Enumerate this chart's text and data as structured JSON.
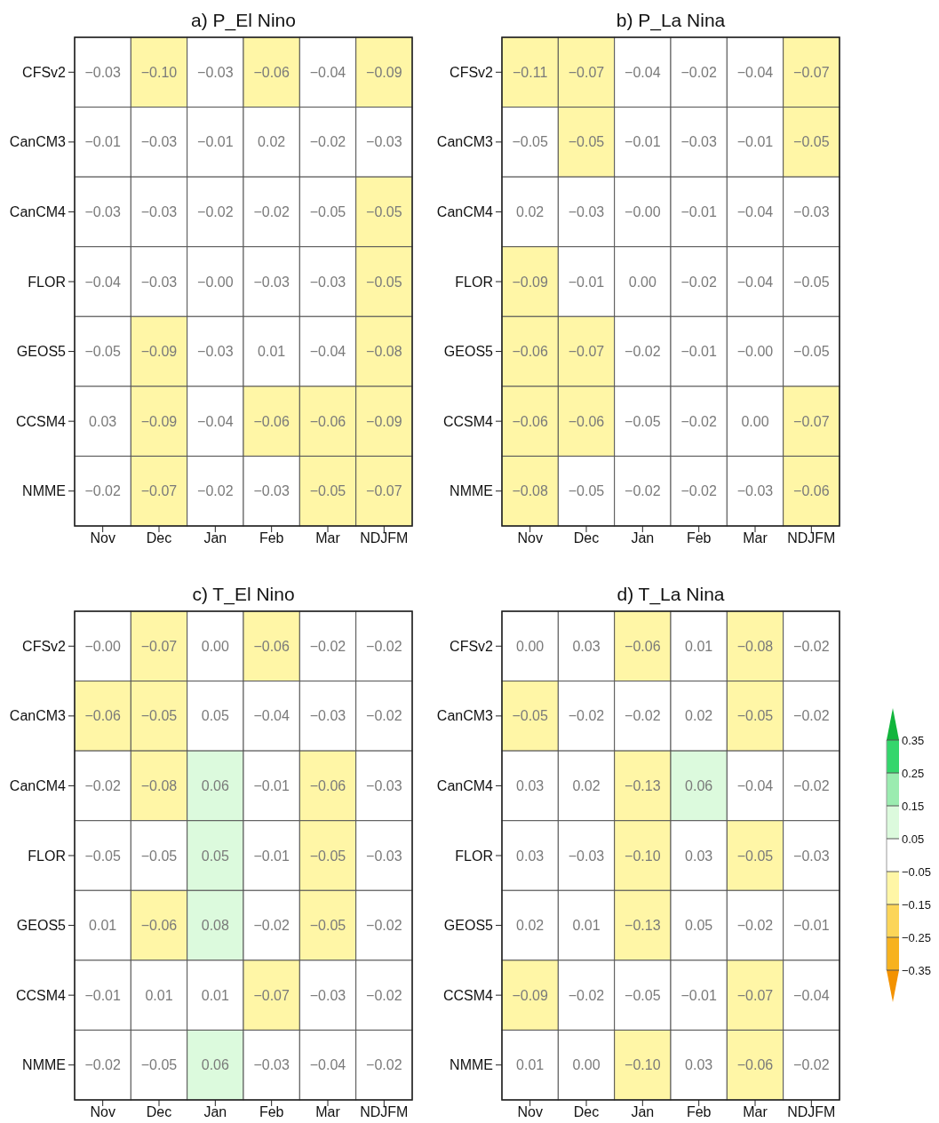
{
  "chart_data": [
    {
      "type": "heatmap",
      "title": "a) P_El Nino",
      "categories": [
        "Nov",
        "Dec",
        "Jan",
        "Feb",
        "Mar",
        "NDJFM"
      ],
      "y_categories": [
        "CFSv2",
        "CanCM3",
        "CanCM4",
        "FLOR",
        "GEOS5",
        "CCSM4",
        "NMME"
      ],
      "cells": [
        [
          -0.03,
          -0.1,
          -0.03,
          -0.06,
          -0.04,
          -0.09
        ],
        [
          -0.01,
          -0.03,
          -0.01,
          0.02,
          -0.02,
          -0.03
        ],
        [
          -0.03,
          -0.03,
          -0.02,
          -0.02,
          -0.048,
          -0.052
        ],
        [
          -0.04,
          -0.03,
          0,
          -0.03,
          -0.03,
          -0.052
        ],
        [
          -0.048,
          -0.09,
          -0.03,
          0.01,
          -0.04,
          -0.08
        ],
        [
          0.03,
          -0.09,
          -0.04,
          -0.06,
          -0.06,
          -0.09
        ],
        [
          -0.02,
          -0.07,
          -0.02,
          -0.03,
          -0.052,
          -0.07
        ]
      ],
      "cell_labels": [
        [
          "−0.03",
          "−0.10",
          "−0.03",
          "−0.06",
          "−0.04",
          "−0.09"
        ],
        [
          "−0.01",
          "−0.03",
          "−0.01",
          "0.02",
          "−0.02",
          "−0.03"
        ],
        [
          "−0.03",
          "−0.03",
          "−0.02",
          "−0.02",
          "−0.05",
          "−0.05"
        ],
        [
          "−0.04",
          "−0.03",
          "−0.00",
          "−0.03",
          "−0.03",
          "−0.05"
        ],
        [
          "−0.05",
          "−0.09",
          "−0.03",
          "0.01",
          "−0.04",
          "−0.08"
        ],
        [
          "0.03",
          "−0.09",
          "−0.04",
          "−0.06",
          "−0.06",
          "−0.09"
        ],
        [
          "−0.02",
          "−0.07",
          "−0.02",
          "−0.03",
          "−0.05",
          "−0.07"
        ]
      ]
    },
    {
      "type": "heatmap",
      "title": "b) P_La Nina",
      "categories": [
        "Nov",
        "Dec",
        "Jan",
        "Feb",
        "Mar",
        "NDJFM"
      ],
      "y_categories": [
        "CFSv2",
        "CanCM3",
        "CanCM4",
        "FLOR",
        "GEOS5",
        "CCSM4",
        "NMME"
      ],
      "cells": [
        [
          -0.11,
          -0.07,
          -0.04,
          -0.02,
          -0.04,
          -0.07
        ],
        [
          -0.048,
          -0.052,
          -0.01,
          -0.03,
          -0.01,
          -0.052
        ],
        [
          0.02,
          -0.03,
          0,
          -0.01,
          -0.04,
          -0.03
        ],
        [
          -0.09,
          -0.01,
          0,
          -0.02,
          -0.04,
          -0.048
        ],
        [
          -0.06,
          -0.07,
          -0.02,
          -0.01,
          0,
          -0.048
        ],
        [
          -0.06,
          -0.06,
          -0.048,
          -0.02,
          0,
          -0.07
        ],
        [
          -0.08,
          -0.048,
          -0.02,
          -0.02,
          -0.03,
          -0.06
        ]
      ],
      "cell_labels": [
        [
          "−0.11",
          "−0.07",
          "−0.04",
          "−0.02",
          "−0.04",
          "−0.07"
        ],
        [
          "−0.05",
          "−0.05",
          "−0.01",
          "−0.03",
          "−0.01",
          "−0.05"
        ],
        [
          "0.02",
          "−0.03",
          "−0.00",
          "−0.01",
          "−0.04",
          "−0.03"
        ],
        [
          "−0.09",
          "−0.01",
          "0.00",
          "−0.02",
          "−0.04",
          "−0.05"
        ],
        [
          "−0.06",
          "−0.07",
          "−0.02",
          "−0.01",
          "−0.00",
          "−0.05"
        ],
        [
          "−0.06",
          "−0.06",
          "−0.05",
          "−0.02",
          "0.00",
          "−0.07"
        ],
        [
          "−0.08",
          "−0.05",
          "−0.02",
          "−0.02",
          "−0.03",
          "−0.06"
        ]
      ]
    },
    {
      "type": "heatmap",
      "title": "c) T_El Nino",
      "categories": [
        "Nov",
        "Dec",
        "Jan",
        "Feb",
        "Mar",
        "NDJFM"
      ],
      "y_categories": [
        "CFSv2",
        "CanCM3",
        "CanCM4",
        "FLOR",
        "GEOS5",
        "CCSM4",
        "NMME"
      ],
      "cells": [
        [
          0,
          -0.07,
          0,
          -0.06,
          -0.02,
          -0.02
        ],
        [
          -0.06,
          -0.052,
          0.048,
          -0.04,
          -0.03,
          -0.02
        ],
        [
          -0.02,
          -0.08,
          0.06,
          -0.01,
          -0.06,
          -0.03
        ],
        [
          -0.048,
          -0.048,
          0.052,
          -0.01,
          -0.052,
          -0.03
        ],
        [
          0.01,
          -0.06,
          0.08,
          -0.02,
          -0.052,
          -0.02
        ],
        [
          -0.01,
          0.01,
          0.01,
          -0.07,
          -0.03,
          -0.02
        ],
        [
          -0.02,
          -0.048,
          0.06,
          -0.03,
          -0.04,
          -0.02
        ]
      ],
      "cell_labels": [
        [
          "−0.00",
          "−0.07",
          "0.00",
          "−0.06",
          "−0.02",
          "−0.02"
        ],
        [
          "−0.06",
          "−0.05",
          "0.05",
          "−0.04",
          "−0.03",
          "−0.02"
        ],
        [
          "−0.02",
          "−0.08",
          "0.06",
          "−0.01",
          "−0.06",
          "−0.03"
        ],
        [
          "−0.05",
          "−0.05",
          "0.05",
          "−0.01",
          "−0.05",
          "−0.03"
        ],
        [
          "0.01",
          "−0.06",
          "0.08",
          "−0.02",
          "−0.05",
          "−0.02"
        ],
        [
          "−0.01",
          "0.01",
          "0.01",
          "−0.07",
          "−0.03",
          "−0.02"
        ],
        [
          "−0.02",
          "−0.05",
          "0.06",
          "−0.03",
          "−0.04",
          "−0.02"
        ]
      ]
    },
    {
      "type": "heatmap",
      "title": "d) T_La Nina",
      "categories": [
        "Nov",
        "Dec",
        "Jan",
        "Feb",
        "Mar",
        "NDJFM"
      ],
      "y_categories": [
        "CFSv2",
        "CanCM3",
        "CanCM4",
        "FLOR",
        "GEOS5",
        "CCSM4",
        "NMME"
      ],
      "cells": [
        [
          0,
          0.03,
          -0.06,
          0.01,
          -0.08,
          -0.02
        ],
        [
          -0.052,
          -0.02,
          -0.02,
          0.02,
          -0.052,
          -0.02
        ],
        [
          0.03,
          0.02,
          -0.13,
          0.06,
          -0.04,
          -0.02
        ],
        [
          0.03,
          -0.03,
          -0.1,
          0.03,
          -0.052,
          -0.03
        ],
        [
          0.02,
          0.01,
          -0.13,
          0.048,
          -0.02,
          -0.01
        ],
        [
          -0.09,
          -0.02,
          -0.048,
          -0.01,
          -0.07,
          -0.04
        ],
        [
          0.01,
          0,
          -0.1,
          0.03,
          -0.06,
          -0.02
        ]
      ],
      "cell_labels": [
        [
          "0.00",
          "0.03",
          "−0.06",
          "0.01",
          "−0.08",
          "−0.02"
        ],
        [
          "−0.05",
          "−0.02",
          "−0.02",
          "0.02",
          "−0.05",
          "−0.02"
        ],
        [
          "0.03",
          "0.02",
          "−0.13",
          "0.06",
          "−0.04",
          "−0.02"
        ],
        [
          "0.03",
          "−0.03",
          "−0.10",
          "0.03",
          "−0.05",
          "−0.03"
        ],
        [
          "0.02",
          "0.01",
          "−0.13",
          "0.05",
          "−0.02",
          "−0.01"
        ],
        [
          "−0.09",
          "−0.02",
          "−0.05",
          "−0.01",
          "−0.07",
          "−0.04"
        ],
        [
          "0.01",
          "0.00",
          "−0.10",
          "0.03",
          "−0.06",
          "−0.02"
        ]
      ],
      "clim": [
        -0.35,
        0.35
      ],
      "cticks": [
        -0.35,
        -0.25,
        -0.15,
        -0.05,
        0.05,
        0.15,
        0.25,
        0.35
      ],
      "colors": [
        "#f39200",
        "#f7b21e",
        "#fcd558",
        "#fff6a6",
        "#ffffff",
        "#dcfadd",
        "#9becb0",
        "#34d66c",
        "#12b53c"
      ]
    }
  ]
}
